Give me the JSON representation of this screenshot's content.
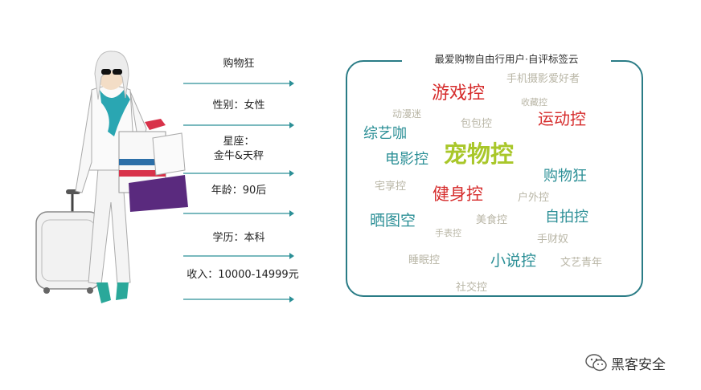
{
  "attributes": {
    "type": "购物狂",
    "gender": "性别：女性",
    "zodiac_line1": "星座：",
    "zodiac_line2": "金牛&天秤",
    "age": "年龄：90后",
    "education": "学历：本科",
    "income": "收入：10000-14999元"
  },
  "cloud": {
    "title": "最爱购物自由行用户·自评标签云",
    "tags": {
      "youxi": "游戏控",
      "yundong": "运动控",
      "chongwu": "宠物控",
      "zongyi": "综艺咖",
      "dianying": "电影控",
      "jianshen": "健身控",
      "gouwu": "购物狂",
      "shaitu": "晒图空",
      "zipai": "自拍控",
      "xiaoshuo": "小说控",
      "shouji": "手机摄影爱好者",
      "shoucang": "收藏控",
      "dongman": "动漫迷",
      "baobao": "包包控",
      "zhaixiang": "宅享控",
      "huwai": "户外控",
      "meishi": "美食控",
      "shouyan": "手表控",
      "dadian": "手财奴",
      "wenyi": "文艺青年",
      "yuegui": "睡眠控",
      "shejiao": "社交控"
    }
  },
  "watermark": {
    "text": "黑客安全",
    "icon": "wechat-icon"
  },
  "colors": {
    "accent": "#2a7c86",
    "red": "#d62c2c",
    "teal": "#2b8f96",
    "lime": "#a9c72a",
    "gray": "#b9b6a6"
  }
}
